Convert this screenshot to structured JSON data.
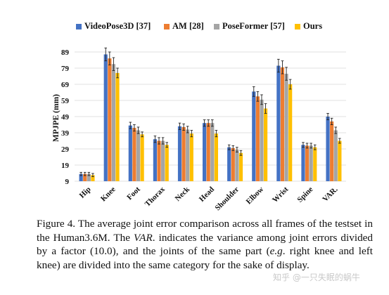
{
  "chart_data": {
    "type": "bar",
    "ylabel": "MPJPE (mm)",
    "xlabel": "",
    "ylim": [
      9,
      89
    ],
    "yticks": [
      "9",
      "19",
      "29",
      "39",
      "49",
      "59",
      "69",
      "79",
      "89"
    ],
    "grid": true,
    "legend_position": "top",
    "categories": [
      "Hip",
      "Knee",
      "Foot",
      "Thorax",
      "Neck",
      "Head",
      "Shoulder",
      "Elbow",
      "Wrist",
      "Spine",
      "VAR."
    ],
    "series": [
      {
        "name": "VideoPose3D [37]",
        "color": "#4472c4",
        "values": [
          13.5,
          87.5,
          43.5,
          35,
          43,
          45,
          30,
          64.5,
          80.5,
          31.5,
          49
        ],
        "errors": [
          1,
          4,
          2,
          2,
          2,
          2,
          1.5,
          3,
          4,
          1.5,
          2
        ]
      },
      {
        "name": "AM [28]",
        "color": "#ed7d31",
        "values": [
          13.5,
          85,
          42,
          34,
          42.5,
          45,
          29.5,
          61.5,
          79.5,
          31,
          46
        ],
        "errors": [
          1,
          4,
          2,
          2,
          2,
          2,
          1.5,
          3,
          4,
          1.5,
          2
        ]
      },
      {
        "name": "PoseFormer [57]",
        "color": "#a5a5a5",
        "values": [
          13.5,
          81.5,
          40.5,
          34,
          41,
          45,
          28.5,
          59.5,
          75.5,
          31,
          40.5
        ],
        "errors": [
          1,
          4,
          2,
          2,
          2,
          2,
          1.5,
          3,
          4,
          1.5,
          2
        ]
      },
      {
        "name": "Ours",
        "color": "#ffc000",
        "values": [
          12.8,
          76,
          38,
          31.5,
          38.5,
          38.5,
          26.5,
          54,
          69,
          30,
          34
        ],
        "errors": [
          1,
          3,
          1.5,
          1.5,
          2,
          2,
          1.5,
          3,
          3,
          1.5,
          1.5
        ]
      }
    ]
  },
  "caption": {
    "figure": "Figure 4.",
    "part1": " The average joint error comparison across all frames of the testset in the Human3.6M. The ",
    "var": "VAR",
    "part2": ". indicates the variance among joint errors divided by a factor (10.0), and the joints of the same part (",
    "eg": "e.g",
    "part3": ". right knee and left knee) are divided into the same category for the sake of display."
  },
  "watermark": "知乎 @一只失眠的蜗牛"
}
